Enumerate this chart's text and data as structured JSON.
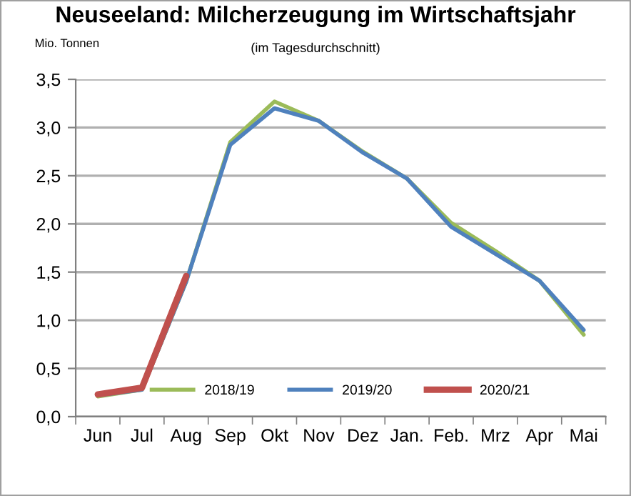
{
  "chart_data": {
    "type": "line",
    "title": "Neuseeland: Milcherzeugung im Wirtschaftsjahr",
    "subtitle": "(im Tagesdurchschnitt)",
    "ylabel": "Mio. Tonnen",
    "categories": [
      "Jun",
      "Jul",
      "Aug",
      "Sep",
      "Okt",
      "Nov",
      "Dez",
      "Jan.",
      "Feb.",
      "Mrz",
      "Apr",
      "Mai"
    ],
    "series": [
      {
        "name": "2018/19",
        "color": "#9bbb59",
        "values": [
          0.21,
          0.28,
          1.4,
          2.85,
          3.27,
          3.07,
          2.75,
          2.47,
          2.01,
          1.72,
          1.41,
          0.85
        ]
      },
      {
        "name": "2019/20",
        "color": "#4f81bd",
        "values": [
          0.22,
          0.28,
          1.4,
          2.82,
          3.2,
          3.07,
          2.74,
          2.47,
          1.97,
          1.69,
          1.41,
          0.9
        ]
      },
      {
        "name": "2020/21",
        "color": "#c0504d",
        "values": [
          0.23,
          0.3,
          1.46,
          null,
          null,
          null,
          null,
          null,
          null,
          null,
          null,
          null
        ]
      }
    ],
    "ylim": [
      0,
      3.5
    ],
    "yticks": [
      {
        "value": 0,
        "label": "0,0"
      },
      {
        "value": 0.5,
        "label": "0,5"
      },
      {
        "value": 1,
        "label": "1,0"
      },
      {
        "value": 1.5,
        "label": "1,5"
      },
      {
        "value": 2,
        "label": "2,0"
      },
      {
        "value": 2.5,
        "label": "2,5"
      },
      {
        "value": 3,
        "label": "3,0"
      },
      {
        "value": 3.5,
        "label": "3,5"
      }
    ],
    "grid": "y",
    "legend": "bottom",
    "marker": "none",
    "line_style": "solid"
  }
}
